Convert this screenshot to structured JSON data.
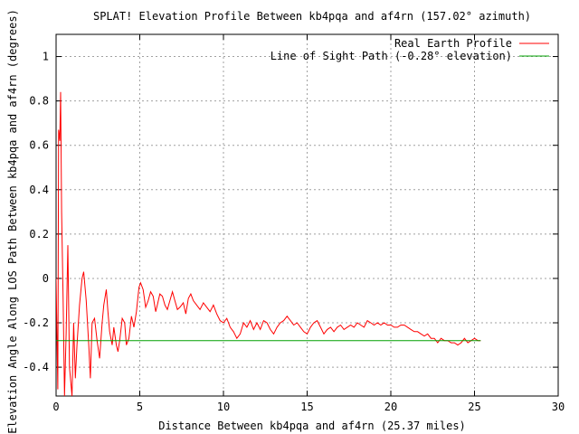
{
  "chart_data": {
    "type": "line",
    "title": "SPLAT! Elevation Profile Between kb4pqa and af4rn (157.02° azimuth)",
    "xlabel": "Distance Between kb4pqa and af4rn (25.37 miles)",
    "ylabel": "Elevation Angle Along LOS Path Between kb4pqa and af4rn (degrees)",
    "xlim": [
      0,
      30
    ],
    "ylim": [
      -0.53,
      1.1
    ],
    "x_ticks": [
      "0",
      "5",
      "10",
      "15",
      "20",
      "25",
      "30"
    ],
    "y_ticks": [
      "-0.4",
      "-0.2",
      "0",
      "0.2",
      "0.4",
      "0.6",
      "0.8",
      "1"
    ],
    "grid": true,
    "legend_position": "top-right",
    "series": [
      {
        "name": "Real Earth Profile",
        "color": "#ff0000",
        "points": [
          [
            0.0,
            0.0
          ],
          [
            0.1,
            -0.5
          ],
          [
            0.15,
            0.67
          ],
          [
            0.22,
            0.62
          ],
          [
            0.27,
            0.84
          ],
          [
            0.33,
            0.3
          ],
          [
            0.42,
            -0.1
          ],
          [
            0.5,
            -0.53
          ],
          [
            0.6,
            -0.25
          ],
          [
            0.7,
            0.15
          ],
          [
            0.8,
            -0.4
          ],
          [
            0.95,
            -0.53
          ],
          [
            1.05,
            -0.2
          ],
          [
            1.15,
            -0.45
          ],
          [
            1.25,
            -0.3
          ],
          [
            1.4,
            -0.12
          ],
          [
            1.55,
            0.0
          ],
          [
            1.65,
            0.03
          ],
          [
            1.8,
            -0.1
          ],
          [
            1.95,
            -0.3
          ],
          [
            2.05,
            -0.45
          ],
          [
            2.15,
            -0.2
          ],
          [
            2.3,
            -0.18
          ],
          [
            2.45,
            -0.28
          ],
          [
            2.6,
            -0.36
          ],
          [
            2.75,
            -0.2
          ],
          [
            2.85,
            -0.12
          ],
          [
            3.0,
            -0.05
          ],
          [
            3.1,
            -0.15
          ],
          [
            3.2,
            -0.24
          ],
          [
            3.35,
            -0.3
          ],
          [
            3.45,
            -0.22
          ],
          [
            3.6,
            -0.3
          ],
          [
            3.7,
            -0.33
          ],
          [
            3.8,
            -0.28
          ],
          [
            3.95,
            -0.18
          ],
          [
            4.1,
            -0.2
          ],
          [
            4.2,
            -0.3
          ],
          [
            4.35,
            -0.27
          ],
          [
            4.5,
            -0.17
          ],
          [
            4.65,
            -0.22
          ],
          [
            4.8,
            -0.15
          ],
          [
            4.95,
            -0.04
          ],
          [
            5.05,
            -0.02
          ],
          [
            5.2,
            -0.05
          ],
          [
            5.35,
            -0.13
          ],
          [
            5.5,
            -0.1
          ],
          [
            5.65,
            -0.06
          ],
          [
            5.8,
            -0.08
          ],
          [
            5.95,
            -0.15
          ],
          [
            6.05,
            -0.12
          ],
          [
            6.2,
            -0.07
          ],
          [
            6.35,
            -0.08
          ],
          [
            6.5,
            -0.12
          ],
          [
            6.65,
            -0.14
          ],
          [
            6.8,
            -0.1
          ],
          [
            6.95,
            -0.06
          ],
          [
            7.1,
            -0.1
          ],
          [
            7.25,
            -0.14
          ],
          [
            7.4,
            -0.13
          ],
          [
            7.6,
            -0.11
          ],
          [
            7.75,
            -0.16
          ],
          [
            7.9,
            -0.09
          ],
          [
            8.05,
            -0.07
          ],
          [
            8.2,
            -0.1
          ],
          [
            8.4,
            -0.12
          ],
          [
            8.6,
            -0.14
          ],
          [
            8.8,
            -0.11
          ],
          [
            9.0,
            -0.13
          ],
          [
            9.2,
            -0.15
          ],
          [
            9.4,
            -0.12
          ],
          [
            9.6,
            -0.16
          ],
          [
            9.8,
            -0.19
          ],
          [
            10.0,
            -0.2
          ],
          [
            10.2,
            -0.18
          ],
          [
            10.4,
            -0.22
          ],
          [
            10.6,
            -0.24
          ],
          [
            10.8,
            -0.27
          ],
          [
            11.0,
            -0.25
          ],
          [
            11.2,
            -0.2
          ],
          [
            11.4,
            -0.22
          ],
          [
            11.6,
            -0.19
          ],
          [
            11.8,
            -0.23
          ],
          [
            12.0,
            -0.2
          ],
          [
            12.2,
            -0.23
          ],
          [
            12.4,
            -0.19
          ],
          [
            12.6,
            -0.2
          ],
          [
            12.8,
            -0.23
          ],
          [
            13.0,
            -0.25
          ],
          [
            13.2,
            -0.22
          ],
          [
            13.4,
            -0.2
          ],
          [
            13.6,
            -0.19
          ],
          [
            13.8,
            -0.17
          ],
          [
            14.0,
            -0.19
          ],
          [
            14.2,
            -0.21
          ],
          [
            14.4,
            -0.2
          ],
          [
            14.6,
            -0.22
          ],
          [
            14.8,
            -0.24
          ],
          [
            15.0,
            -0.25
          ],
          [
            15.2,
            -0.22
          ],
          [
            15.4,
            -0.2
          ],
          [
            15.6,
            -0.19
          ],
          [
            15.8,
            -0.22
          ],
          [
            16.0,
            -0.25
          ],
          [
            16.2,
            -0.23
          ],
          [
            16.4,
            -0.22
          ],
          [
            16.6,
            -0.24
          ],
          [
            16.8,
            -0.22
          ],
          [
            17.0,
            -0.21
          ],
          [
            17.2,
            -0.23
          ],
          [
            17.4,
            -0.22
          ],
          [
            17.6,
            -0.21
          ],
          [
            17.8,
            -0.22
          ],
          [
            18.0,
            -0.2
          ],
          [
            18.2,
            -0.21
          ],
          [
            18.4,
            -0.22
          ],
          [
            18.6,
            -0.19
          ],
          [
            18.8,
            -0.2
          ],
          [
            19.0,
            -0.21
          ],
          [
            19.2,
            -0.2
          ],
          [
            19.4,
            -0.21
          ],
          [
            19.6,
            -0.2
          ],
          [
            19.8,
            -0.21
          ],
          [
            20.0,
            -0.21
          ],
          [
            20.2,
            -0.22
          ],
          [
            20.4,
            -0.22
          ],
          [
            20.6,
            -0.21
          ],
          [
            20.8,
            -0.21
          ],
          [
            21.0,
            -0.22
          ],
          [
            21.2,
            -0.23
          ],
          [
            21.4,
            -0.24
          ],
          [
            21.6,
            -0.24
          ],
          [
            21.8,
            -0.25
          ],
          [
            22.0,
            -0.26
          ],
          [
            22.2,
            -0.25
          ],
          [
            22.4,
            -0.27
          ],
          [
            22.6,
            -0.27
          ],
          [
            22.8,
            -0.29
          ],
          [
            23.0,
            -0.27
          ],
          [
            23.2,
            -0.28
          ],
          [
            23.4,
            -0.28
          ],
          [
            23.6,
            -0.29
          ],
          [
            23.8,
            -0.29
          ],
          [
            24.0,
            -0.3
          ],
          [
            24.2,
            -0.29
          ],
          [
            24.4,
            -0.27
          ],
          [
            24.6,
            -0.29
          ],
          [
            24.8,
            -0.28
          ],
          [
            25.0,
            -0.27
          ],
          [
            25.2,
            -0.28
          ],
          [
            25.37,
            -0.28
          ]
        ]
      },
      {
        "name": "Line of Sight Path (-0.28° elevation)",
        "color": "#00a000",
        "points": [
          [
            0,
            -0.28
          ],
          [
            25.37,
            -0.28
          ]
        ]
      }
    ]
  }
}
